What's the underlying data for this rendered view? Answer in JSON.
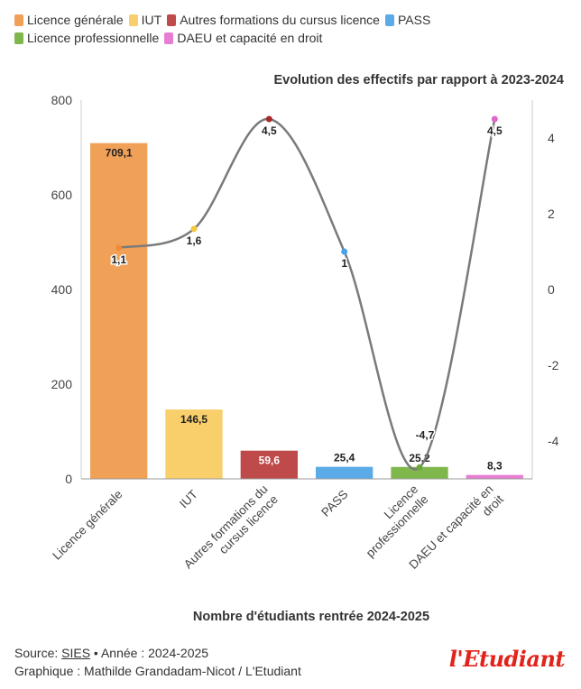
{
  "chart_data": {
    "type": "bar",
    "title": "Evolution des effectifs par rapport à 2023-2024",
    "xlabel": "Nombre d'étudiants rentrée 2024-2025",
    "ylabel": "",
    "categories": [
      "Licence générale",
      "IUT",
      "Autres formations du cursus licence",
      "PASS",
      "Licence professionnelle",
      "DAEU et capacité en droit"
    ],
    "category_label_lines": [
      [
        "Licence générale"
      ],
      [
        "IUT"
      ],
      [
        "Autres formations du",
        "cursus licence"
      ],
      [
        "PASS"
      ],
      [
        "Licence",
        "professionnelle"
      ],
      [
        "DAEU et capacité en",
        "droit"
      ]
    ],
    "series": [
      {
        "type": "bar",
        "values": [
          709.1,
          146.5,
          59.6,
          25.4,
          25.2,
          8.3
        ],
        "labels": [
          "709,1",
          "146,5",
          "59,6",
          "25,4",
          "25,2",
          "8,3"
        ],
        "colors": [
          "#f0a057",
          "#f8cf6a",
          "#bf4a4a",
          "#5aabe8",
          "#80b74d",
          "#e87ed3"
        ]
      },
      {
        "type": "line",
        "axis": "right",
        "values": [
          1.1,
          1.6,
          4.5,
          1,
          -4.7,
          4.5
        ],
        "labels": [
          "1,1",
          "1,6",
          "4,5",
          "1",
          "-4,7",
          "4,5"
        ],
        "point_colors": [
          "#f08c3a",
          "#f5c843",
          "#a52a2a",
          "#4aa3e8",
          "#6aa83a",
          "#e066cc"
        ],
        "line_color": "#7a7a7a"
      }
    ],
    "ylim": [
      0,
      800
    ],
    "yticks": [
      0,
      200,
      400,
      600,
      800
    ],
    "y2lim": [
      -5,
      5
    ],
    "y2ticks": [
      -4,
      -2,
      0,
      2,
      4
    ],
    "y2tick_labels": [
      "-4",
      "-2",
      "0",
      "2",
      "4"
    ],
    "legend": {
      "position": "top-left",
      "rows": [
        [
          {
            "label": "Licence générale",
            "color": "#f0a057"
          },
          {
            "label": "IUT",
            "color": "#f8cf6a"
          },
          {
            "label": "Autres formations du cursus licence",
            "color": "#bf4a4a"
          },
          {
            "label": "PASS",
            "color": "#5aabe8"
          }
        ],
        [
          {
            "label": "Licence professionnelle",
            "color": "#80b74d"
          },
          {
            "label": "DAEU et capacité en droit",
            "color": "#e87ed3"
          }
        ]
      ]
    },
    "grid": false
  },
  "footer": {
    "source_prefix": "Source: ",
    "source_link": "SIES",
    "source_suffix": " • Année : 2024-2025",
    "credit": "Graphique : Mathilde Grandadam-Nicot / L'Etudiant"
  },
  "logo": {
    "text": "l'Etudiant",
    "color": "#e2231a"
  }
}
